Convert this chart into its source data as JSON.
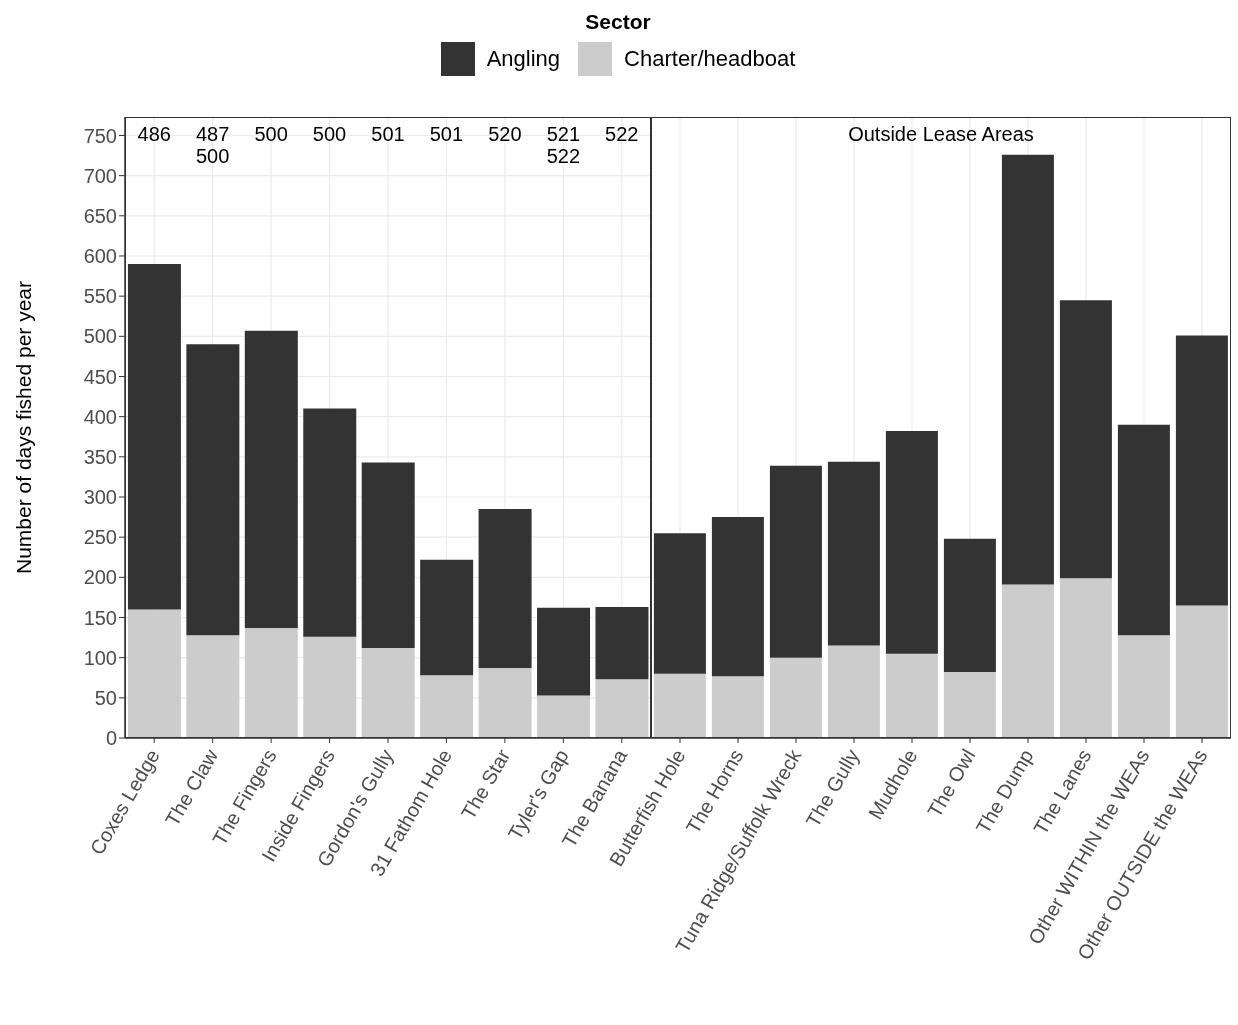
{
  "chart_data": [
    {
      "type": "bar",
      "stacked": true,
      "ylabel": "Number of days fished per year",
      "legend_title": "Sector",
      "legend": "top",
      "grid": true,
      "categories": [
        "Coxes Ledge",
        "The Claw",
        "The Fingers",
        "Inside Fingers",
        "Gordon's Gully",
        "31 Fathom Hole",
        "The Star",
        "Tyler's Gap",
        "The Banana"
      ],
      "series": [
        {
          "name": "Charter/headboat",
          "color": "#cccccc",
          "values": [
            160,
            128,
            137,
            126,
            112,
            78,
            87,
            53,
            73
          ]
        },
        {
          "name": "Angling",
          "color": "#333333",
          "values": [
            430,
            362,
            370,
            284,
            231,
            144,
            198,
            109,
            90
          ]
        }
      ],
      "ylim": [
        0,
        773
      ],
      "yticks": [
        0,
        50,
        100,
        150,
        200,
        250,
        300,
        350,
        400,
        450,
        500,
        550,
        600,
        650,
        700,
        750
      ],
      "annotations": [
        "486",
        "487\n500",
        "500",
        "500",
        "501",
        "501",
        "520",
        "521\n522",
        "522"
      ]
    },
    {
      "type": "bar",
      "stacked": true,
      "grid": true,
      "tick_labels": "x",
      "categories": [
        "Butterfish Hole",
        "The Horns",
        "Tuna Ridge/Suffolk Wreck",
        "The Gully",
        "Mudhole",
        "The Owl",
        "The Dump",
        "The Lanes",
        "Other WITHIN the WEAs",
        "Other OUTSIDE the WEAs"
      ],
      "series": [
        {
          "color": "#cccccc",
          "values": [
            80,
            77,
            100,
            115,
            105,
            82,
            191,
            199,
            128,
            165
          ]
        },
        {
          "color": "#333333",
          "values": [
            175,
            198,
            239,
            229,
            277,
            166,
            535,
            346,
            262,
            336
          ]
        }
      ],
      "ylim": [
        0,
        773
      ],
      "yticks": [
        0,
        50,
        100,
        150,
        200,
        250,
        300,
        350,
        400,
        450,
        500,
        550,
        600,
        650,
        700,
        750
      ],
      "annotations": [
        "Outside Lease Areas"
      ]
    }
  ]
}
